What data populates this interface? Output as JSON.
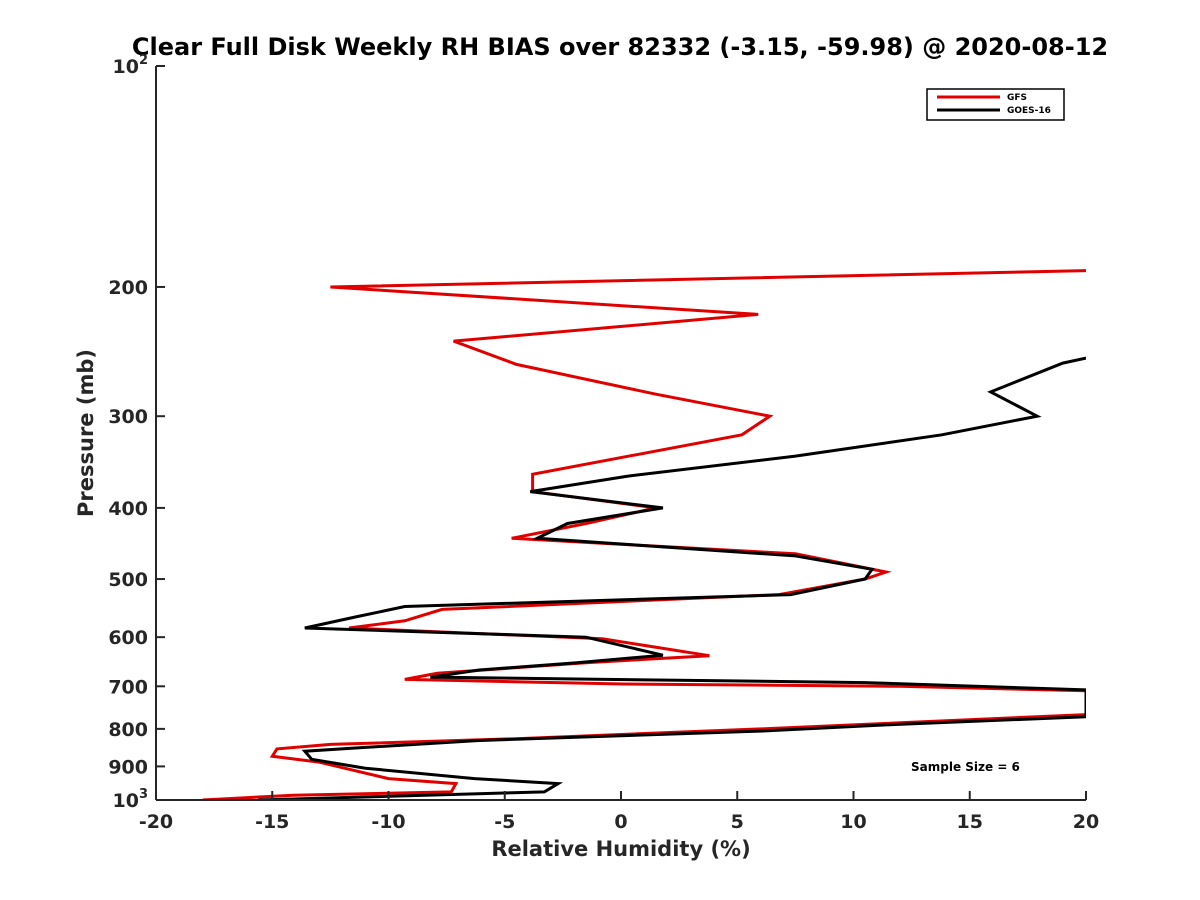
{
  "chart_data": {
    "type": "line",
    "title": "Clear Full Disk Weekly RH BIAS over 82332 (-3.15, -59.98) @ 2020-08-12",
    "xlabel": "Relative Humidity (%)",
    "ylabel": "Pressure (mb)",
    "xlim": [
      -20,
      20
    ],
    "ylim": [
      100,
      1000
    ],
    "yscale": "log",
    "y_reversed": true,
    "x_ticks": [
      "-20",
      "-15",
      "-10",
      "-5",
      "0",
      "5",
      "10",
      "15",
      "20"
    ],
    "y_ticks": [
      {
        "value": 100,
        "base": "10",
        "exp": "2"
      },
      {
        "value": 200,
        "base": "200",
        "exp": ""
      },
      {
        "value": 300,
        "base": "300",
        "exp": ""
      },
      {
        "value": 400,
        "base": "400",
        "exp": ""
      },
      {
        "value": 500,
        "base": "500",
        "exp": ""
      },
      {
        "value": 600,
        "base": "600",
        "exp": ""
      },
      {
        "value": 700,
        "base": "700",
        "exp": ""
      },
      {
        "value": 800,
        "base": "800",
        "exp": ""
      },
      {
        "value": 900,
        "base": "900",
        "exp": ""
      },
      {
        "value": 1000,
        "base": "10",
        "exp": "3"
      }
    ],
    "grid": false,
    "legend_position": "top-right",
    "annotation": "Sample Size = 6",
    "series": [
      {
        "name": "GFS",
        "color": "#e00000",
        "points": [
          [
            20,
            190
          ],
          [
            -12.5,
            200
          ],
          [
            5.9,
            218
          ],
          [
            -7.2,
            237
          ],
          [
            -4.5,
            255
          ],
          [
            1.5,
            280
          ],
          [
            6.4,
            300
          ],
          [
            5.2,
            318
          ],
          [
            -3.8,
            360
          ],
          [
            -3.8,
            380
          ],
          [
            1.5,
            400
          ],
          [
            -1.5,
            420
          ],
          [
            -4.7,
            440
          ],
          [
            7.5,
            462
          ],
          [
            11.4,
            489
          ],
          [
            10.5,
            500
          ],
          [
            6.8,
            525
          ],
          [
            -7.7,
            550
          ],
          [
            -9.3,
            570
          ],
          [
            -11.7,
            583
          ],
          [
            -0.8,
            603
          ],
          [
            3.8,
            636
          ],
          [
            -1.5,
            650
          ],
          [
            -7.9,
            672
          ],
          [
            -9.3,
            685
          ],
          [
            0.1,
            695
          ],
          [
            12,
            700
          ],
          [
            20,
            710
          ],
          [
            20,
            765
          ],
          [
            6,
            800
          ],
          [
            -4.5,
            825
          ],
          [
            -12.5,
            840
          ],
          [
            -14.8,
            852
          ],
          [
            -15,
            872
          ],
          [
            -13,
            888
          ],
          [
            -10,
            935
          ],
          [
            -7.1,
            950
          ],
          [
            -7.3,
            975
          ],
          [
            -14.1,
            985
          ],
          [
            -18,
            1000
          ]
        ]
      },
      {
        "name": "GOES-16",
        "color": "#000000",
        "points": [
          [
            20,
            250
          ],
          [
            19,
            254
          ],
          [
            15.9,
            278
          ],
          [
            17.9,
            300
          ],
          [
            13.8,
            318
          ],
          [
            7.5,
            340
          ],
          [
            0.3,
            362
          ],
          [
            -3.9,
            380
          ],
          [
            1.8,
            400
          ],
          [
            -2.3,
            420
          ],
          [
            -3.6,
            440
          ],
          [
            7.5,
            465
          ],
          [
            10.8,
            485
          ],
          [
            10.5,
            500
          ],
          [
            7.3,
            525
          ],
          [
            -9.3,
            545
          ],
          [
            -11.4,
            563
          ],
          [
            -13.6,
            583
          ],
          [
            -1.5,
            600
          ],
          [
            1.8,
            635
          ],
          [
            -1.9,
            650
          ],
          [
            -6.1,
            665
          ],
          [
            -8.2,
            680
          ],
          [
            10.5,
            692
          ],
          [
            20,
            708
          ],
          [
            20,
            770
          ],
          [
            11.4,
            790
          ],
          [
            6.2,
            805
          ],
          [
            -6.2,
            830
          ],
          [
            -11,
            848
          ],
          [
            -13.6,
            858
          ],
          [
            -13.3,
            880
          ],
          [
            -11,
            905
          ],
          [
            -6.3,
            935
          ],
          [
            -2.7,
            950
          ],
          [
            -3.3,
            975
          ],
          [
            -15.6,
            1000
          ]
        ]
      }
    ]
  }
}
